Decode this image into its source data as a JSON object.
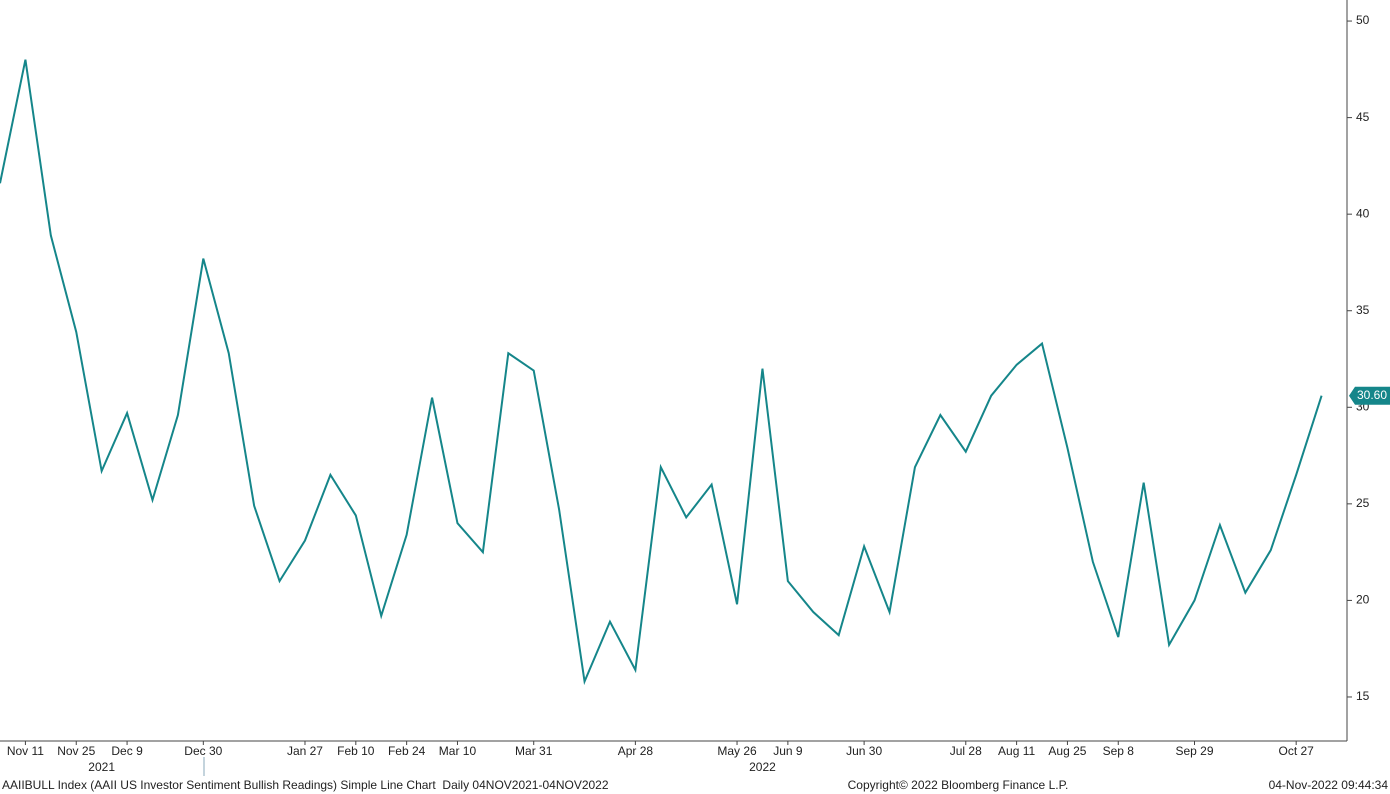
{
  "chart_data": {
    "type": "line",
    "x": [
      "2021-11-04",
      "2021-11-11",
      "2021-11-18",
      "2021-11-25",
      "2021-12-02",
      "2021-12-09",
      "2021-12-16",
      "2021-12-23",
      "2021-12-30",
      "2022-01-06",
      "2022-01-13",
      "2022-01-20",
      "2022-01-27",
      "2022-02-03",
      "2022-02-10",
      "2022-02-17",
      "2022-02-24",
      "2022-03-03",
      "2022-03-10",
      "2022-03-17",
      "2022-03-24",
      "2022-03-31",
      "2022-04-07",
      "2022-04-14",
      "2022-04-21",
      "2022-04-28",
      "2022-05-05",
      "2022-05-12",
      "2022-05-19",
      "2022-05-26",
      "2022-06-02",
      "2022-06-09",
      "2022-06-16",
      "2022-06-23",
      "2022-06-30",
      "2022-07-07",
      "2022-07-14",
      "2022-07-21",
      "2022-07-28",
      "2022-08-04",
      "2022-08-11",
      "2022-08-18",
      "2022-08-25",
      "2022-09-01",
      "2022-09-08",
      "2022-09-15",
      "2022-09-22",
      "2022-09-29",
      "2022-10-06",
      "2022-10-13",
      "2022-10-20",
      "2022-10-27",
      "2022-11-03"
    ],
    "values": [
      41.6,
      48.0,
      38.9,
      33.9,
      26.7,
      29.7,
      25.2,
      29.6,
      37.7,
      32.8,
      24.9,
      21.0,
      23.1,
      26.5,
      24.4,
      19.2,
      23.4,
      30.5,
      24.0,
      22.5,
      32.8,
      31.9,
      24.7,
      15.8,
      18.9,
      16.4,
      26.9,
      24.3,
      26.0,
      19.8,
      32.0,
      21.0,
      19.4,
      18.2,
      22.8,
      19.4,
      26.9,
      29.6,
      27.7,
      30.6,
      32.2,
      33.3,
      27.9,
      22.0,
      18.1,
      26.1,
      17.7,
      20.0,
      23.9,
      20.4,
      22.6,
      26.5,
      30.6
    ],
    "color": "#15868a",
    "xlim": [
      "2021-11-04",
      "2022-11-10"
    ],
    "xticks": [
      {
        "value": "2021-11-11",
        "label": "Nov 11"
      },
      {
        "value": "2021-11-25",
        "label": "Nov 25"
      },
      {
        "value": "2021-12-09",
        "label": "Dec 9"
      },
      {
        "value": "2021-12-30",
        "label": "Dec 30"
      },
      {
        "value": "2022-01-27",
        "label": "Jan 27"
      },
      {
        "value": "2022-02-10",
        "label": "Feb 10"
      },
      {
        "value": "2022-02-24",
        "label": "Feb 24"
      },
      {
        "value": "2022-03-10",
        "label": "Mar 10"
      },
      {
        "value": "2022-03-31",
        "label": "Mar 31"
      },
      {
        "value": "2022-04-28",
        "label": "Apr 28"
      },
      {
        "value": "2022-05-26",
        "label": "May 26"
      },
      {
        "value": "2022-06-09",
        "label": "Jun 9"
      },
      {
        "value": "2022-06-30",
        "label": "Jun 30"
      },
      {
        "value": "2022-07-28",
        "label": "Jul 28"
      },
      {
        "value": "2022-08-11",
        "label": "Aug 11"
      },
      {
        "value": "2022-08-25",
        "label": "Aug 25"
      },
      {
        "value": "2022-09-08",
        "label": "Sep 8"
      },
      {
        "value": "2022-09-29",
        "label": "Sep 29"
      },
      {
        "value": "2022-10-27",
        "label": "Oct 27"
      }
    ],
    "year_labels": [
      {
        "value": "2021-12-02",
        "label": "2021"
      },
      {
        "value": "2022-06-02",
        "label": "2022"
      }
    ],
    "ylim": [
      12.72,
      51.09
    ],
    "yticks": [
      15,
      20,
      25,
      30,
      35,
      40,
      45,
      50
    ],
    "last_label": {
      "value": 30.6,
      "label": "30.60"
    },
    "footer": {
      "description": "AAIIBULL Index (AAII US Investor Sentiment Bullish Readings) Simple Line Chart  Daily 04NOV2021-04NOV2022",
      "copyright": "Copyright© 2022 Bloomberg Finance L.P.",
      "timestamp": "04-Nov-2022 09:44:34"
    }
  }
}
